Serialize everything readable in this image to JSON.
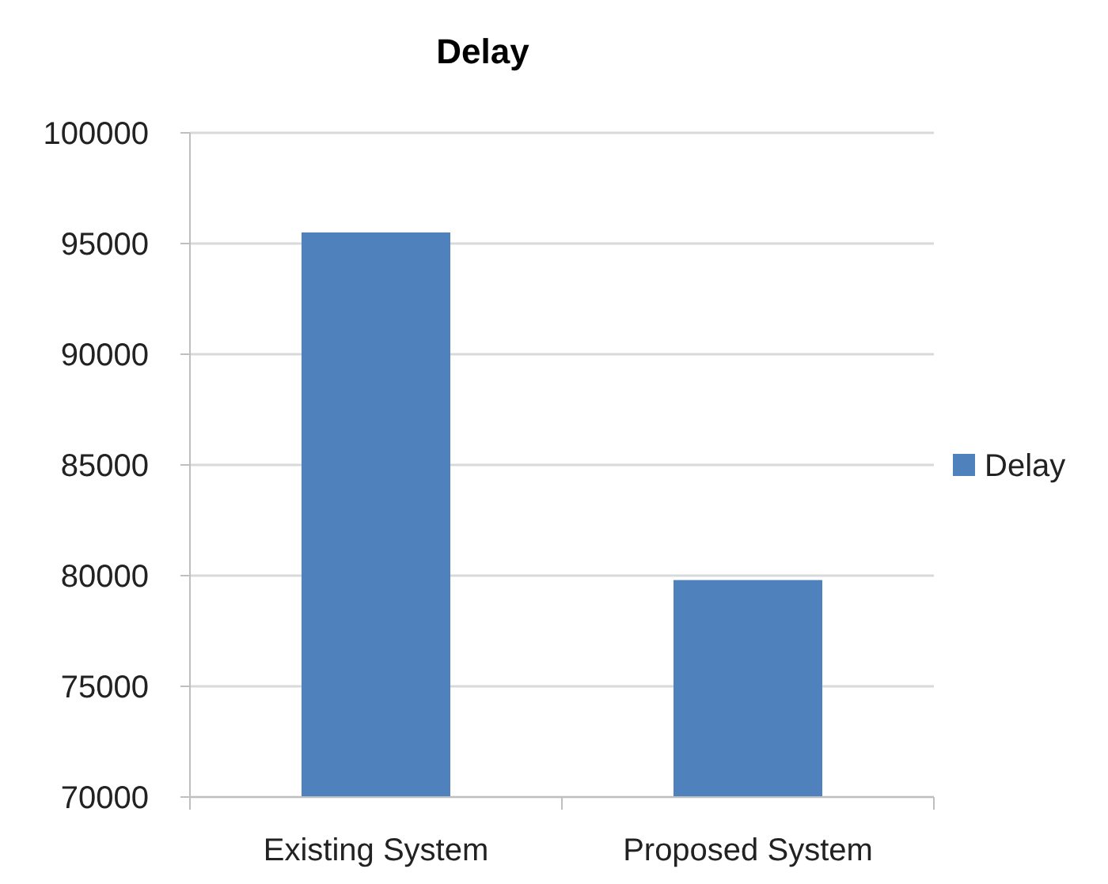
{
  "chart_data": {
    "type": "bar",
    "title": "Delay",
    "categories": [
      "Existing System",
      "Proposed System"
    ],
    "series": [
      {
        "name": "Delay",
        "color": "#4f81bd",
        "values": [
          95500,
          79800
        ]
      }
    ],
    "ylim": [
      70000,
      100000
    ],
    "yticks": [
      70000,
      75000,
      80000,
      85000,
      90000,
      95000,
      100000
    ],
    "grid": "y",
    "legend": "right"
  }
}
